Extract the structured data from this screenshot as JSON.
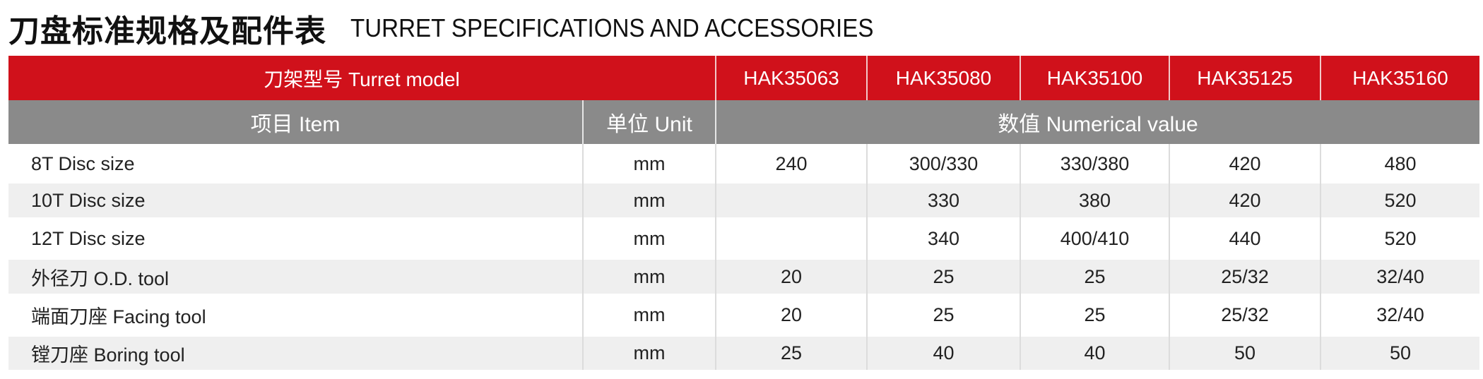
{
  "title": {
    "zh": "刀盘标准规格及配件表",
    "en": "TURRET SPECIFICATIONS AND ACCESSORIES"
  },
  "colors": {
    "header_red": "#d0111b",
    "subheader_gray": "#8a8a8a",
    "stripe": "#efefef"
  },
  "table": {
    "model_label": "刀架型号 Turret model",
    "models": [
      "HAK35063",
      "HAK35080",
      "HAK35100",
      "HAK35125",
      "HAK35160"
    ],
    "item_label": "项目 Item",
    "unit_label": "单位 Unit",
    "value_label": "数值 Numerical value",
    "rows": [
      {
        "item": "8T Disc size",
        "unit": "mm",
        "values": [
          "240",
          "300/330",
          "330/380",
          "420",
          "480"
        ]
      },
      {
        "item": "10T Disc size",
        "unit": "mm",
        "values": [
          "",
          "330",
          "380",
          "420",
          "520"
        ]
      },
      {
        "item": "12T Disc size",
        "unit": "mm",
        "values": [
          "",
          "340",
          "400/410",
          "440",
          "520"
        ]
      },
      {
        "item": "外径刀 O.D. tool",
        "unit": "mm",
        "values": [
          "20",
          "25",
          "25",
          "25/32",
          "32/40"
        ]
      },
      {
        "item": "端面刀座 Facing tool",
        "unit": "mm",
        "values": [
          "20",
          "25",
          "25",
          "25/32",
          "32/40"
        ]
      },
      {
        "item": "镗刀座 Boring tool",
        "unit": "mm",
        "values": [
          "25",
          "40",
          "40",
          "50",
          "50"
        ]
      }
    ]
  }
}
